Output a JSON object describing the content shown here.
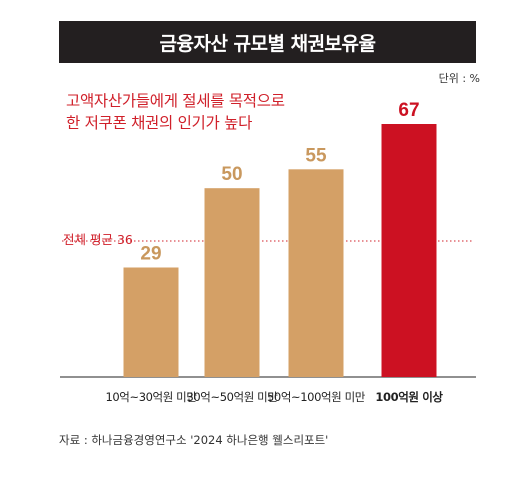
{
  "title": "금융자산 규모별 채권보유율",
  "unit": "단위 : %",
  "annotation": {
    "line1": "고액자산가들에게 절세를 목적으로",
    "line2": "한 저쿠폰 채권의 인기가 높다"
  },
  "average": {
    "label": "전체 평균 36",
    "value": 36
  },
  "source": "자료 : 하나금융경영연구소 '2024 하나은행 웰스리포트'",
  "colors": {
    "bar": "#d4a066",
    "highlight": "#cc1122",
    "value_text": "#c9985e",
    "avg_line": "#d0202a",
    "title_bg": "#231f20"
  },
  "chart_data": {
    "type": "bar",
    "categories": [
      "10억~30억원 미만",
      "30억~50억원 미만",
      "50억~100억원 미만",
      "100억원 이상"
    ],
    "values": [
      29,
      50,
      55,
      67
    ],
    "highlight_index": 3,
    "ylim": [
      0,
      67
    ],
    "reference_line": 36,
    "grid": false
  }
}
